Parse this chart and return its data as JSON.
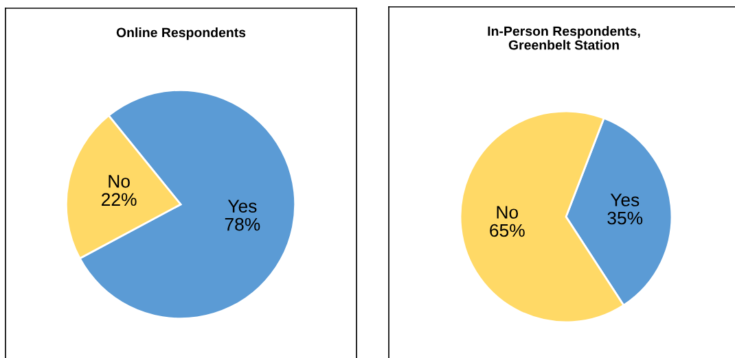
{
  "chart_data": [
    {
      "type": "pie",
      "title": "Online Respondents",
      "categories": [
        "Yes",
        "No"
      ],
      "values": [
        78,
        22
      ],
      "value_labels": [
        "78%",
        "22%"
      ],
      "colors": [
        "#5b9bd5",
        "#ffd966"
      ]
    },
    {
      "type": "pie",
      "title": "In-Person Respondents,\nGreenbelt Station",
      "categories": [
        "Yes",
        "No"
      ],
      "values": [
        35,
        65
      ],
      "value_labels": [
        "35%",
        "65%"
      ],
      "colors": [
        "#5b9bd5",
        "#ffd966"
      ]
    }
  ]
}
